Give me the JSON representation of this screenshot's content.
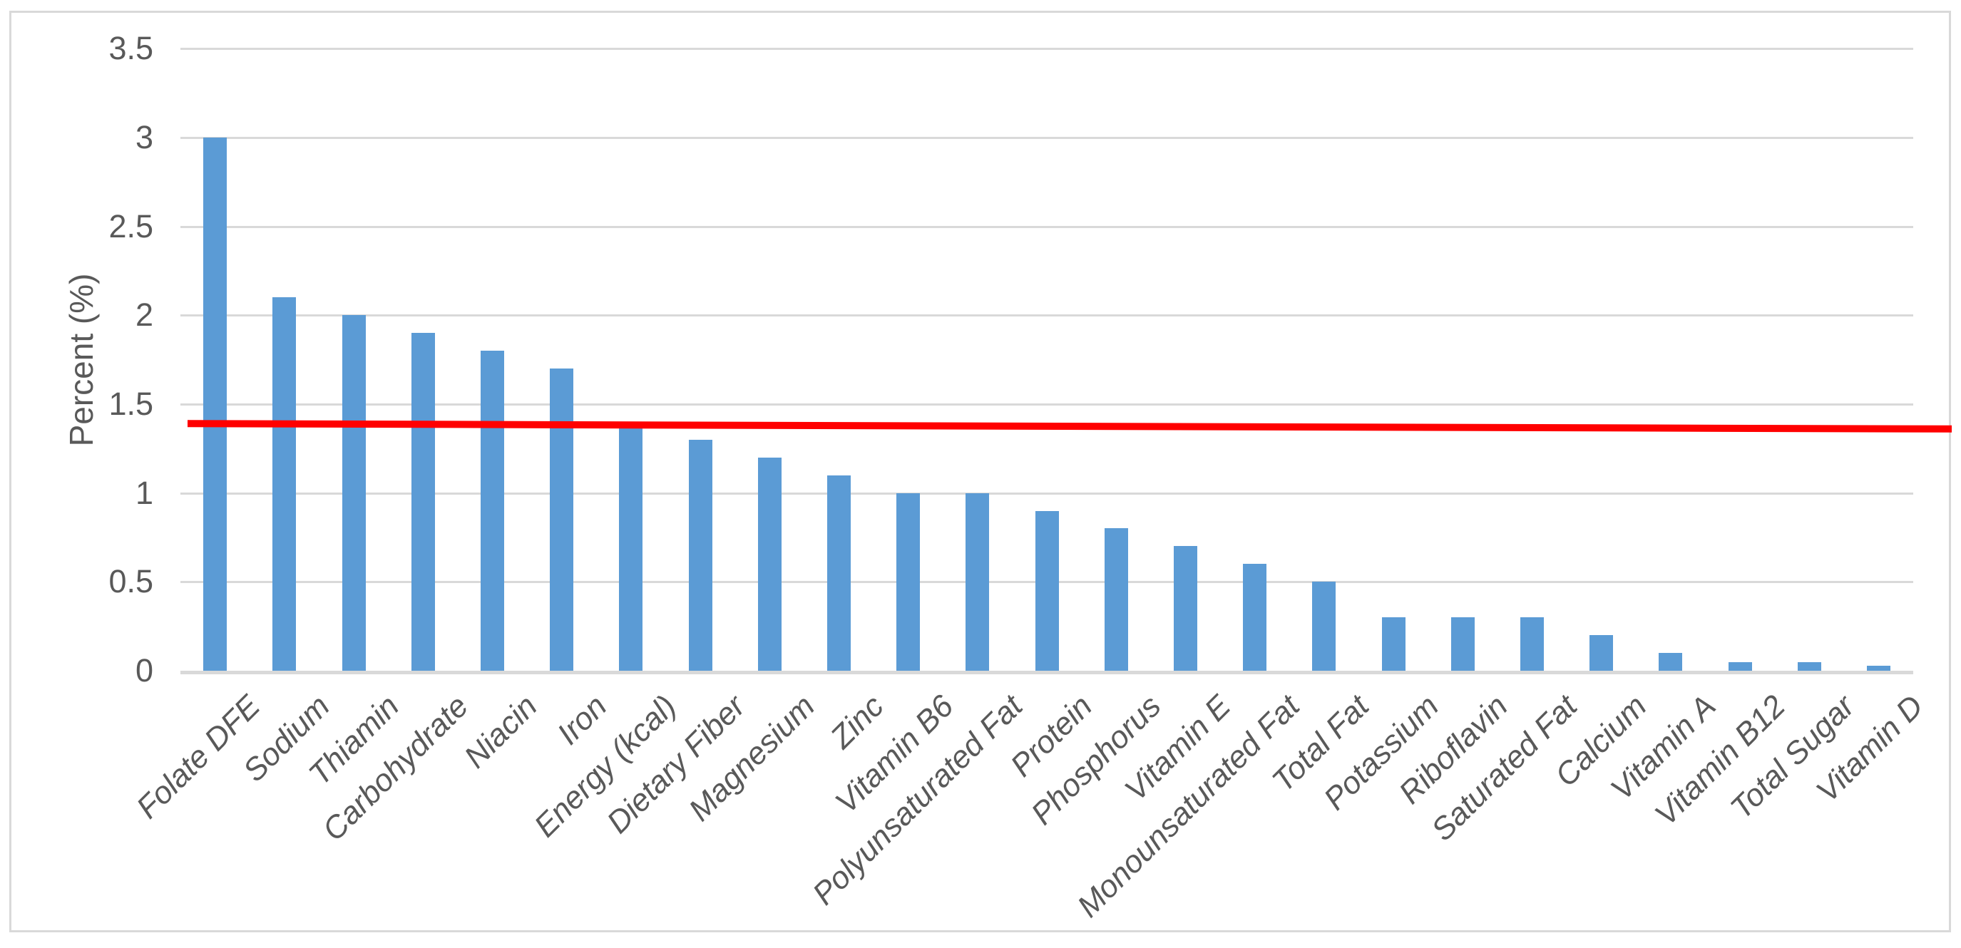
{
  "chart_data": {
    "type": "bar",
    "title": "",
    "xlabel": "",
    "ylabel": "Percent (%)",
    "categories": [
      "Folate DFE",
      "Sodium",
      "Thiamin",
      "Carbohydrate",
      "Niacin",
      "Iron",
      "Energy (kcal)",
      "Dietary Fiber",
      "Magnesium",
      "Zinc",
      "Vitamin B6",
      "Polyunsaturated Fat",
      "Protein",
      "Phosphorus",
      "Vitamin E",
      "Monounsaturated Fat",
      "Total Fat",
      "Potassium",
      "Riboflavin",
      "Saturated Fat",
      "Calcium",
      "Vitamin A",
      "Vitamin B12",
      "Total Sugar",
      "Vitamin D"
    ],
    "values": [
      3.0,
      2.1,
      2.0,
      1.9,
      1.8,
      1.7,
      1.4,
      1.3,
      1.2,
      1.1,
      1.0,
      1.0,
      0.9,
      0.8,
      0.7,
      0.6,
      0.5,
      0.3,
      0.3,
      0.3,
      0.2,
      0.1,
      0.05,
      0.05,
      0.03
    ],
    "y_tick_labels": [
      "0",
      "0.5",
      "1",
      "1.5",
      "2",
      "2.5",
      "3",
      "3.5"
    ],
    "y_tick_values": [
      0,
      0.5,
      1,
      1.5,
      2,
      2.5,
      3,
      3.5
    ],
    "ylim": [
      0,
      3.5
    ],
    "grid": true,
    "legend": "none",
    "bar_color": "#5b9bd5",
    "gridline_color": "#d9d9d9",
    "axis_line_color": "#d9d9d9",
    "tick_text_color": "#595959",
    "reference_line": {
      "name": "red-threshold-line",
      "color": "#ff0000",
      "start_value": 1.39,
      "end_value": 1.36
    }
  }
}
